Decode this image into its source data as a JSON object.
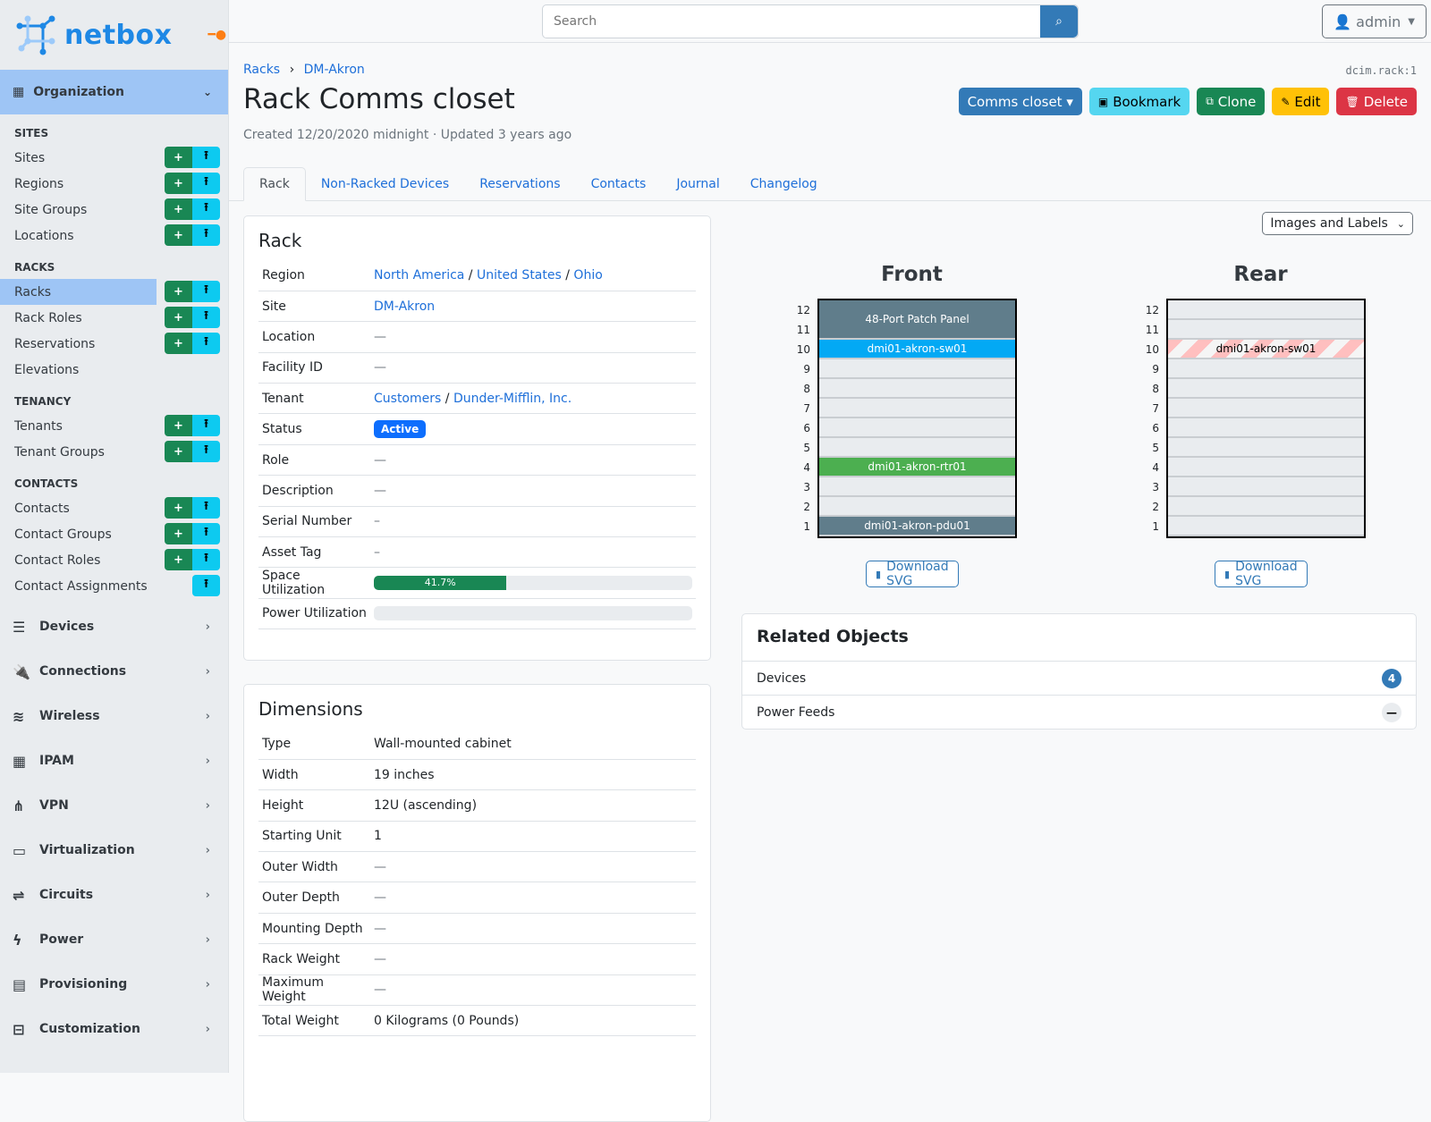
{
  "brand": {
    "name": "netbox",
    "accent": "#1e88e5"
  },
  "sidebar": {
    "org_label": "Organization",
    "sections": [
      {
        "title": "SITES",
        "items": [
          {
            "label": "Sites",
            "add": true,
            "import": true
          },
          {
            "label": "Regions",
            "add": true,
            "import": true
          },
          {
            "label": "Site Groups",
            "add": true,
            "import": true
          },
          {
            "label": "Locations",
            "add": true,
            "import": true
          }
        ]
      },
      {
        "title": "RACKS",
        "items": [
          {
            "label": "Racks",
            "add": true,
            "import": true,
            "active": true
          },
          {
            "label": "Rack Roles",
            "add": true,
            "import": true
          },
          {
            "label": "Reservations",
            "add": true,
            "import": true
          },
          {
            "label": "Elevations",
            "add": false,
            "import": false
          }
        ]
      },
      {
        "title": "TENANCY",
        "items": [
          {
            "label": "Tenants",
            "add": true,
            "import": true
          },
          {
            "label": "Tenant Groups",
            "add": true,
            "import": true
          }
        ]
      },
      {
        "title": "CONTACTS",
        "items": [
          {
            "label": "Contacts",
            "add": true,
            "import": true
          },
          {
            "label": "Contact Groups",
            "add": true,
            "import": true
          },
          {
            "label": "Contact Roles",
            "add": true,
            "import": true
          },
          {
            "label": "Contact Assignments",
            "add": false,
            "import": true
          }
        ]
      }
    ],
    "menus": [
      {
        "label": "Devices",
        "icon": "server-icon",
        "glyph": "☰"
      },
      {
        "label": "Connections",
        "icon": "plug-icon",
        "glyph": "🔌"
      },
      {
        "label": "Wireless",
        "icon": "wifi-icon",
        "glyph": "≋"
      },
      {
        "label": "IPAM",
        "icon": "counter-icon",
        "glyph": "▦"
      },
      {
        "label": "VPN",
        "icon": "graph-icon",
        "glyph": "⋔"
      },
      {
        "label": "Virtualization",
        "icon": "monitor-icon",
        "glyph": "▭"
      },
      {
        "label": "Circuits",
        "icon": "circuit-icon",
        "glyph": "⇌"
      },
      {
        "label": "Power",
        "icon": "bolt-icon",
        "glyph": "ϟ"
      },
      {
        "label": "Provisioning",
        "icon": "file-icon",
        "glyph": "▤"
      },
      {
        "label": "Customization",
        "icon": "toolbox-icon",
        "glyph": "⊟"
      }
    ]
  },
  "header": {
    "search_placeholder": "Search",
    "user": "admin"
  },
  "page": {
    "breadcrumb": [
      "Racks",
      "DM-Akron"
    ],
    "object_id": "dcim.rack:1",
    "title": "Rack Comms closet",
    "meta": "Created 12/20/2020 midnight · Updated 3 years ago",
    "actions": [
      {
        "label": "Comms closet ▾",
        "icon": "",
        "color": "#337ab7",
        "text": "#fff"
      },
      {
        "label": "Bookmark",
        "icon": "▣",
        "color": "#55d6f0",
        "text": "#000"
      },
      {
        "label": "Clone",
        "icon": "⧉",
        "color": "#198754",
        "text": "#fff"
      },
      {
        "label": "Edit",
        "icon": "✎",
        "color": "#ffc107",
        "text": "#000"
      },
      {
        "label": "Delete",
        "icon": "🗑",
        "color": "#dc3545",
        "text": "#fff"
      }
    ],
    "tabs": [
      "Rack",
      "Non-Racked Devices",
      "Reservations",
      "Contacts",
      "Journal",
      "Changelog"
    ]
  },
  "rack_card": {
    "title": "Rack",
    "rows": [
      {
        "k": "Region",
        "links": [
          "North America",
          "United States",
          "Ohio"
        ]
      },
      {
        "k": "Site",
        "links": [
          "DM-Akron"
        ]
      },
      {
        "k": "Location",
        "v": "—"
      },
      {
        "k": "Facility ID",
        "v": "—"
      },
      {
        "k": "Tenant",
        "links": [
          "Customers",
          "Dunder-Mifflin, Inc."
        ]
      },
      {
        "k": "Status",
        "badge": "Active"
      },
      {
        "k": "Role",
        "v": "—"
      },
      {
        "k": "Description",
        "v": "—"
      },
      {
        "k": "Serial Number",
        "v": "–"
      },
      {
        "k": "Asset Tag",
        "v": "–"
      },
      {
        "k": "Space Utilization",
        "progress": 41.7,
        "label": "41.7%"
      },
      {
        "k": "Power Utilization",
        "progress": 0,
        "label": "0.0%"
      }
    ]
  },
  "dimensions": {
    "title": "Dimensions",
    "rows": [
      {
        "k": "Type",
        "v": "Wall-mounted cabinet"
      },
      {
        "k": "Width",
        "v": "19 inches"
      },
      {
        "k": "Height",
        "v": "12U (ascending)"
      },
      {
        "k": "Starting Unit",
        "v": "1"
      },
      {
        "k": "Outer Width",
        "v": "—"
      },
      {
        "k": "Outer Depth",
        "v": "—"
      },
      {
        "k": "Mounting Depth",
        "v": "—"
      },
      {
        "k": "Rack Weight",
        "v": "—"
      },
      {
        "k": "Maximum Weight",
        "v": "—"
      },
      {
        "k": "Total Weight",
        "v": "0 Kilograms (0 Pounds)"
      }
    ]
  },
  "elevation": {
    "view_select": "Images and Labels",
    "units": [
      12,
      11,
      10,
      9,
      8,
      7,
      6,
      5,
      4,
      3,
      2,
      1
    ],
    "download_label": "Download SVG",
    "front": {
      "title": "Front",
      "devices": [
        {
          "name": "48-Port Patch Panel",
          "top": 12,
          "height": 2,
          "color": "#607d8b"
        },
        {
          "name": "dmi01-akron-sw01",
          "top": 10,
          "height": 1,
          "color": "#03a9f4"
        },
        {
          "name": "dmi01-akron-rtr01",
          "top": 4,
          "height": 1,
          "color": "#4caf50"
        },
        {
          "name": "dmi01-akron-pdu01",
          "top": 1,
          "height": 1,
          "color": "#607d8b"
        }
      ]
    },
    "rear": {
      "title": "Rear",
      "devices": [
        {
          "name": "dmi01-akron-sw01",
          "top": 10,
          "height": 1,
          "color": "striped"
        }
      ]
    }
  },
  "related": {
    "title": "Related Objects",
    "rows": [
      {
        "label": "Devices",
        "count": "4"
      },
      {
        "label": "Power Feeds",
        "count": "—"
      }
    ]
  }
}
